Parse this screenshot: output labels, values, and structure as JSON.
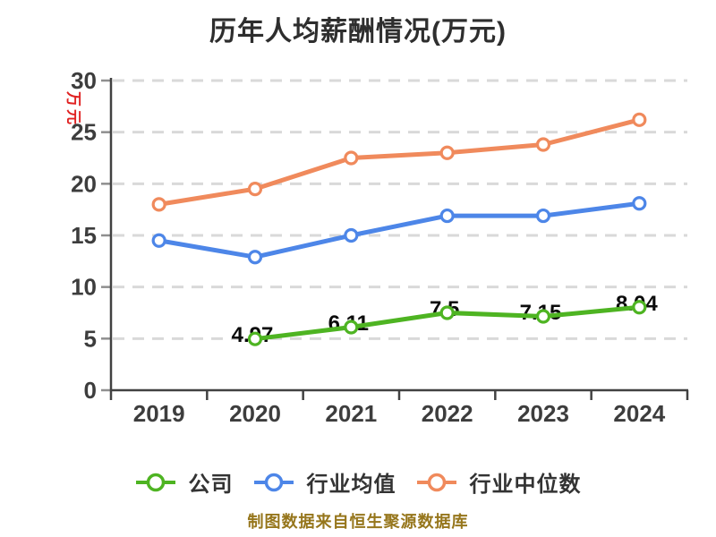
{
  "title": "历年人均薪酬情况(万元)",
  "y_axis_unit": "万元",
  "footer": "制图数据来自恒生聚源数据库",
  "colors": {
    "background": "#ffffff",
    "grid": "#d9d9d9",
    "axis": "#414141",
    "tick": "#8f8f8f",
    "tick_label": "#3d3d3d",
    "value_label": "#0b0b0b",
    "title": "#2e2e2e",
    "legend_label": "#333333",
    "unit_label": "#e02222",
    "footer": "#96761c",
    "point_fill": "#ffffff"
  },
  "chart_data": {
    "type": "line",
    "title": "历年人均薪酬情况(万元)",
    "xlabel": "",
    "ylabel": "万元",
    "categories": [
      "2019",
      "2020",
      "2021",
      "2022",
      "2023",
      "2024"
    ],
    "series": [
      {
        "key": "company",
        "name": "公司",
        "color": "#4eb422",
        "values": [
          null,
          4.97,
          6.11,
          7.5,
          7.15,
          8.04
        ],
        "point_labels": [
          "",
          "4.97",
          "6.11",
          "7.5",
          "7.15",
          "8.04"
        ]
      },
      {
        "key": "industry-average",
        "name": "行业均值",
        "color": "#4d86e8",
        "values": [
          14.5,
          12.9,
          15.0,
          16.9,
          16.9,
          18.1
        ],
        "point_labels": null
      },
      {
        "key": "industry-median",
        "name": "行业中位数",
        "color": "#f08a5c",
        "values": [
          18.0,
          19.5,
          22.5,
          23.0,
          23.8,
          26.2
        ],
        "point_labels": null
      }
    ],
    "ylim": [
      0,
      30
    ],
    "y_ticks": [
      0,
      5,
      10,
      15,
      20,
      25,
      30
    ],
    "grid": "dashed horizontal",
    "legend_position": "bottom"
  }
}
